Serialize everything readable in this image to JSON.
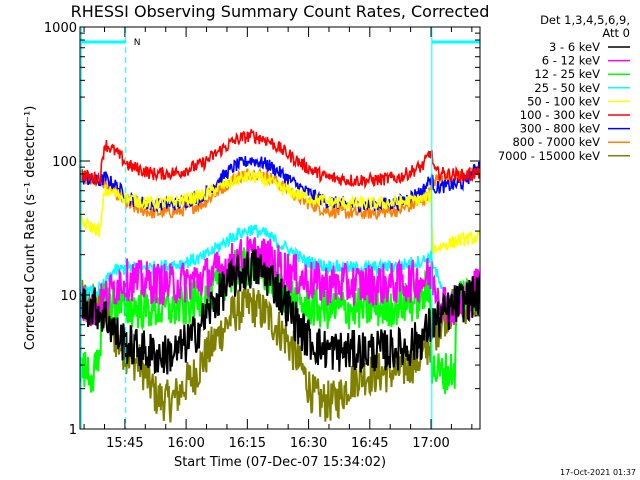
{
  "chart_data": {
    "type": "line",
    "title": "RHESSI Observing Summary Count Rates, Corrected",
    "xlabel": "Start Time (07-Dec-07 15:34:02)",
    "ylabel": "Corrected Count Rate (s⁻¹ detector⁻¹)",
    "y_scale": "log",
    "ylim": [
      1,
      1000
    ],
    "xlim": [
      0,
      98
    ],
    "x_unit": "minutes after 15:34:02",
    "y_ticks": [
      {
        "label": "1",
        "value": 1
      },
      {
        "label": "10",
        "value": 10
      },
      {
        "label": "100",
        "value": 100
      },
      {
        "label": "1000",
        "value": 1000
      }
    ],
    "x_ticks": [
      {
        "label": "15:45",
        "value": 11
      },
      {
        "label": "16:00",
        "value": 26
      },
      {
        "label": "16:15",
        "value": 41
      },
      {
        "label": "16:30",
        "value": 56
      },
      {
        "label": "16:45",
        "value": 71
      },
      {
        "label": "17:00",
        "value": 86
      }
    ],
    "legend_header": [
      "Det 1,3,4,5,6,9,",
      "Att 0"
    ],
    "legend_position": "right",
    "night_markers": [
      {
        "x_start": 0.3,
        "x_end": 11.2,
        "label": "N"
      },
      {
        "x_start": 86.2,
        "x_end": 98
      }
    ],
    "series": [
      {
        "name": "3 - 6 keV",
        "color": "#000000",
        "points": [
          [
            0,
            8.5
          ],
          [
            4,
            8
          ],
          [
            7,
            6.5
          ],
          [
            9,
            5
          ],
          [
            12,
            4.2
          ],
          [
            16,
            3.8
          ],
          [
            20,
            3.5
          ],
          [
            24,
            3.8
          ],
          [
            28,
            5
          ],
          [
            32,
            8
          ],
          [
            36,
            12
          ],
          [
            40,
            15
          ],
          [
            43,
            16
          ],
          [
            47,
            13
          ],
          [
            51,
            8
          ],
          [
            55,
            5
          ],
          [
            59,
            4
          ],
          [
            63,
            3.8
          ],
          [
            70,
            3.8
          ],
          [
            76,
            3.9
          ],
          [
            80,
            4
          ],
          [
            84,
            4.8
          ],
          [
            86,
            6
          ],
          [
            89,
            7
          ],
          [
            92,
            8.5
          ],
          [
            96,
            9.5
          ],
          [
            98,
            10
          ]
        ]
      },
      {
        "name": "6 - 12 keV",
        "color": "#ff00ff",
        "points": [
          [
            0,
            8.5
          ],
          [
            4,
            8
          ],
          [
            6,
            9
          ],
          [
            8,
            11
          ],
          [
            10,
            13
          ],
          [
            12,
            13
          ],
          [
            16,
            12.5
          ],
          [
            22,
            12
          ],
          [
            28,
            12.8
          ],
          [
            32,
            14
          ],
          [
            36,
            16.5
          ],
          [
            40,
            19
          ],
          [
            43,
            20
          ],
          [
            47,
            18
          ],
          [
            51,
            15
          ],
          [
            55,
            13
          ],
          [
            60,
            12
          ],
          [
            66,
            12
          ],
          [
            72,
            12
          ],
          [
            78,
            12.2
          ],
          [
            84,
            13
          ],
          [
            86,
            14
          ],
          [
            89,
            9
          ],
          [
            92,
            8
          ],
          [
            96,
            10
          ],
          [
            98,
            13
          ]
        ]
      },
      {
        "name": "12 - 25 keV",
        "color": "#00ff00",
        "points": [
          [
            0,
            2.8
          ],
          [
            3,
            2.6
          ],
          [
            5,
            2.8
          ],
          [
            5.2,
            9.5
          ],
          [
            8,
            9
          ],
          [
            11,
            8
          ],
          [
            14,
            8
          ],
          [
            20,
            7.8
          ],
          [
            26,
            8.2
          ],
          [
            30,
            9.5
          ],
          [
            34,
            12
          ],
          [
            38,
            15
          ],
          [
            42,
            16.5
          ],
          [
            46,
            14
          ],
          [
            50,
            10.5
          ],
          [
            54,
            8.5
          ],
          [
            58,
            8
          ],
          [
            64,
            7.8
          ],
          [
            70,
            8
          ],
          [
            76,
            8.2
          ],
          [
            82,
            9
          ],
          [
            86,
            11
          ],
          [
            86.2,
            2.8
          ],
          [
            89,
            2.6
          ],
          [
            92,
            2.8
          ],
          [
            92.2,
            10
          ],
          [
            96,
            10.5
          ],
          [
            98,
            11
          ]
        ]
      },
      {
        "name": "25 - 50 keV",
        "color": "#00ffff",
        "points": [
          [
            0,
            10.5
          ],
          [
            4,
            10.5
          ],
          [
            6,
            12
          ],
          [
            8,
            15
          ],
          [
            12,
            16
          ],
          [
            18,
            16
          ],
          [
            24,
            17
          ],
          [
            30,
            19
          ],
          [
            34,
            23
          ],
          [
            38,
            28
          ],
          [
            42,
            31
          ],
          [
            46,
            28
          ],
          [
            50,
            23
          ],
          [
            55,
            18
          ],
          [
            60,
            16.5
          ],
          [
            66,
            16
          ],
          [
            72,
            16
          ],
          [
            78,
            16.5
          ],
          [
            84,
            18
          ],
          [
            86,
            19.5
          ],
          [
            89,
            10
          ],
          [
            92,
            9.5
          ],
          [
            96,
            11
          ],
          [
            98,
            13
          ]
        ]
      },
      {
        "name": "50 - 100 keV",
        "color": "#ffff00",
        "points": [
          [
            0,
            35
          ],
          [
            3,
            32
          ],
          [
            5,
            30
          ],
          [
            6,
            60
          ],
          [
            8,
            58
          ],
          [
            12,
            52
          ],
          [
            18,
            48
          ],
          [
            24,
            50
          ],
          [
            30,
            55
          ],
          [
            34,
            63
          ],
          [
            38,
            72
          ],
          [
            42,
            77
          ],
          [
            46,
            71
          ],
          [
            50,
            61
          ],
          [
            55,
            54
          ],
          [
            60,
            50
          ],
          [
            66,
            48
          ],
          [
            72,
            48
          ],
          [
            78,
            49
          ],
          [
            84,
            52
          ],
          [
            86,
            55
          ],
          [
            86.5,
            22
          ],
          [
            90,
            24
          ],
          [
            94,
            26
          ],
          [
            98,
            27
          ]
        ]
      },
      {
        "name": "100 - 300 keV",
        "color": "#ff0000",
        "points": [
          [
            0,
            80
          ],
          [
            3,
            75
          ],
          [
            5,
            75
          ],
          [
            6,
            135
          ],
          [
            9,
            115
          ],
          [
            12,
            92
          ],
          [
            18,
            80
          ],
          [
            24,
            82
          ],
          [
            30,
            95
          ],
          [
            34,
            118
          ],
          [
            38,
            143
          ],
          [
            42,
            155
          ],
          [
            46,
            143
          ],
          [
            50,
            118
          ],
          [
            55,
            92
          ],
          [
            60,
            76
          ],
          [
            66,
            72
          ],
          [
            72,
            72
          ],
          [
            78,
            75
          ],
          [
            84,
            92
          ],
          [
            86,
            118
          ],
          [
            87,
            82
          ],
          [
            90,
            80
          ],
          [
            94,
            78
          ],
          [
            98,
            82
          ]
        ]
      },
      {
        "name": "300 - 800 keV",
        "color": "#0000ff",
        "points": [
          [
            0,
            75
          ],
          [
            3,
            72
          ],
          [
            5,
            70
          ],
          [
            6,
            75
          ],
          [
            9,
            65
          ],
          [
            12,
            52
          ],
          [
            18,
            47
          ],
          [
            24,
            48
          ],
          [
            30,
            55
          ],
          [
            34,
            72
          ],
          [
            38,
            92
          ],
          [
            42,
            102
          ],
          [
            46,
            94
          ],
          [
            50,
            78
          ],
          [
            55,
            60
          ],
          [
            60,
            50
          ],
          [
            66,
            47
          ],
          [
            72,
            47
          ],
          [
            78,
            49
          ],
          [
            84,
            60
          ],
          [
            86,
            75
          ],
          [
            87,
            63
          ],
          [
            90,
            65
          ],
          [
            94,
            68
          ],
          [
            98,
            95
          ]
        ]
      },
      {
        "name": "800 - 7000 keV",
        "color": "#ff8000",
        "points": [
          [
            0,
            78
          ],
          [
            3,
            72
          ],
          [
            5,
            70
          ],
          [
            6,
            68
          ],
          [
            9,
            57
          ],
          [
            12,
            46
          ],
          [
            18,
            41
          ],
          [
            24,
            42
          ],
          [
            30,
            48
          ],
          [
            34,
            60
          ],
          [
            38,
            75
          ],
          [
            42,
            82
          ],
          [
            46,
            77
          ],
          [
            50,
            64
          ],
          [
            55,
            50
          ],
          [
            60,
            43
          ],
          [
            66,
            41
          ],
          [
            72,
            41
          ],
          [
            78,
            43
          ],
          [
            84,
            50
          ],
          [
            86,
            60
          ],
          [
            87,
            72
          ],
          [
            90,
            75
          ],
          [
            94,
            78
          ],
          [
            98,
            82
          ]
        ]
      },
      {
        "name": "7000 - 15000 keV",
        "color": "#808000",
        "points": [
          [
            0,
            9
          ],
          [
            3,
            9
          ],
          [
            5,
            8
          ],
          [
            7,
            6.5
          ],
          [
            9,
            4.5
          ],
          [
            12,
            3.5
          ],
          [
            15,
            3
          ],
          [
            17,
            2.2
          ],
          [
            19,
            1.7
          ],
          [
            22,
            1.6
          ],
          [
            24,
            1.8
          ],
          [
            26,
            2.2
          ],
          [
            28,
            2.5
          ],
          [
            30,
            3.2
          ],
          [
            34,
            5
          ],
          [
            38,
            7.5
          ],
          [
            42,
            8.5
          ],
          [
            46,
            7
          ],
          [
            50,
            5
          ],
          [
            53,
            3.5
          ],
          [
            55,
            2.5
          ],
          [
            57,
            1.8
          ],
          [
            59,
            1.6
          ],
          [
            62,
            1.6
          ],
          [
            64,
            1.8
          ],
          [
            66,
            2.2
          ],
          [
            68,
            2.5
          ],
          [
            72,
            2.6
          ],
          [
            78,
            2.7
          ],
          [
            84,
            3.5
          ],
          [
            86,
            4.5
          ],
          [
            88,
            6
          ],
          [
            90,
            7.5
          ],
          [
            94,
            8.5
          ],
          [
            98,
            9.5
          ]
        ]
      }
    ]
  },
  "footer": {
    "timestamp": "17-Oct-2021 01:37"
  }
}
